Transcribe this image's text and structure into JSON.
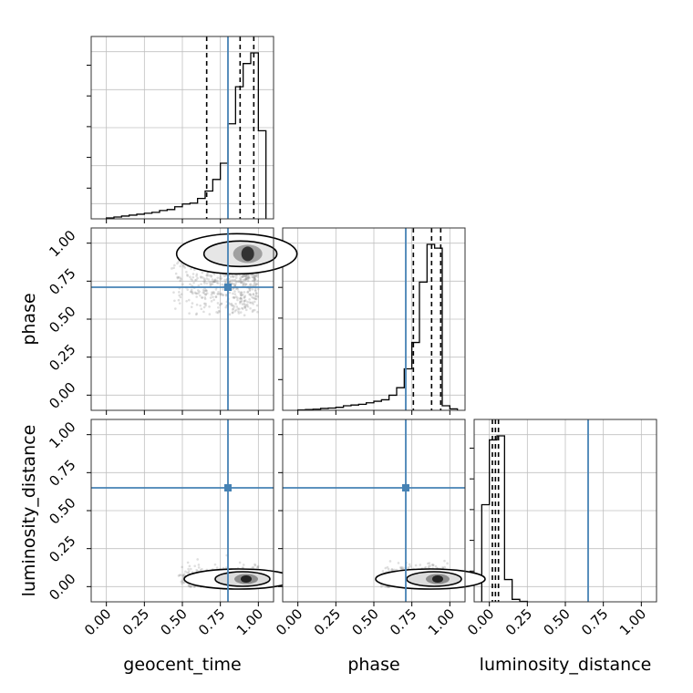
{
  "chart_data": {
    "type": "corner",
    "parameters": [
      "geocent_time",
      "phase",
      "luminosity_distance"
    ],
    "axis_labels": {
      "bottom": [
        "geocent_time",
        "phase",
        "luminosity_distance"
      ],
      "left": [
        "phase",
        "luminosity_distance"
      ]
    },
    "tick_labels": [
      "0.00",
      "0.25",
      "0.50",
      "0.75",
      "1.00"
    ],
    "tick_values": [
      0.0,
      0.25,
      0.5,
      0.75,
      1.0
    ],
    "range": [
      -0.1,
      1.1
    ],
    "grid": true,
    "colors": {
      "truth": "#4682b4",
      "histogram": "#000000",
      "quantile": "#000000",
      "scatter": "#8c8c8c",
      "grid": "#c0c0c0"
    },
    "truths": {
      "geocent_time": 0.8,
      "phase": 0.71,
      "luminosity_distance": 0.65
    },
    "histograms": {
      "geocent_time": {
        "bin_edges": [
          0.0,
          0.05,
          0.1,
          0.15,
          0.2,
          0.25,
          0.3,
          0.35,
          0.4,
          0.45,
          0.5,
          0.55,
          0.6,
          0.65,
          0.7,
          0.75,
          0.8,
          0.85,
          0.9,
          0.95,
          1.0,
          1.05
        ],
        "counts": [
          2,
          4,
          6,
          8,
          10,
          12,
          14,
          18,
          20,
          26,
          32,
          34,
          44,
          60,
          85,
          120,
          205,
          285,
          335,
          358,
          190
        ],
        "quantiles": [
          0.66,
          0.88,
          0.97
        ]
      },
      "phase": {
        "bin_edges": [
          0.0,
          0.05,
          0.1,
          0.15,
          0.2,
          0.25,
          0.3,
          0.35,
          0.4,
          0.45,
          0.5,
          0.55,
          0.6,
          0.65,
          0.7,
          0.75,
          0.8,
          0.85,
          0.9,
          0.95,
          1.0,
          1.05
        ],
        "counts": [
          1,
          2,
          3,
          5,
          6,
          8,
          12,
          14,
          16,
          20,
          24,
          28,
          40,
          60,
          110,
          180,
          340,
          440,
          430,
          12,
          4
        ],
        "quantiles": [
          0.76,
          0.88,
          0.94
        ]
      },
      "luminosity_distance": {
        "bin_edges": [
          -0.05,
          0.0,
          0.05,
          0.1,
          0.15,
          0.2,
          0.25
        ],
        "counts": [
          480,
          800,
          820,
          110,
          12,
          2
        ],
        "quantiles": [
          0.02,
          0.04,
          0.06
        ]
      }
    },
    "scatter_pairs": [
      {
        "x": "geocent_time",
        "y": "phase",
        "x_mean": 0.72,
        "x_sd": 0.22,
        "y_mean": 0.78,
        "y_sd": 0.2,
        "density_peak": [
          0.93,
          0.93
        ]
      },
      {
        "x": "geocent_time",
        "y": "luminosity_distance",
        "x_mean": 0.74,
        "x_sd": 0.2,
        "y_mean": 0.05,
        "y_sd": 0.03,
        "density_peak": [
          0.92,
          0.05
        ]
      },
      {
        "x": "phase",
        "y": "luminosity_distance",
        "x_mean": 0.78,
        "x_sd": 0.18,
        "y_mean": 0.05,
        "y_sd": 0.03,
        "density_peak": [
          0.92,
          0.05
        ]
      }
    ]
  }
}
